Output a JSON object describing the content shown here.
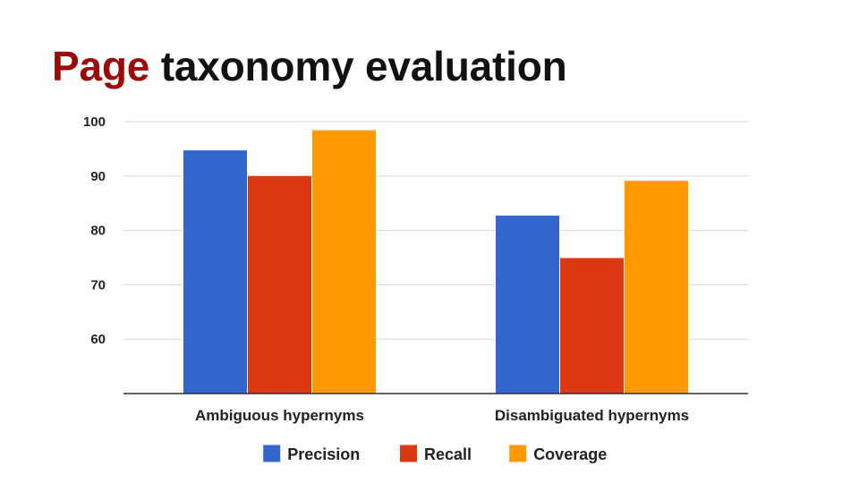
{
  "slide": {
    "title_accent": "Page",
    "title_rest": "taxonomy evaluation",
    "title_accent_color": "#9b0a0a"
  },
  "chart_data": {
    "type": "bar",
    "title": "",
    "xlabel": "",
    "ylabel": "",
    "categories": [
      "Ambiguous hypernyms",
      "Disambiguated hypernyms"
    ],
    "series": [
      {
        "name": "Precision",
        "color": "#3366cc",
        "values": [
          94.8,
          82.8
        ]
      },
      {
        "name": "Recall",
        "color": "#dc3912",
        "values": [
          90.1,
          75.0
        ]
      },
      {
        "name": "Coverage",
        "color": "#ff9900",
        "values": [
          98.5,
          89.2
        ]
      }
    ],
    "ylim": [
      50,
      100
    ],
    "yticks": [
      60,
      70,
      80,
      90,
      100
    ],
    "grid": true,
    "legend_position": "bottom"
  }
}
